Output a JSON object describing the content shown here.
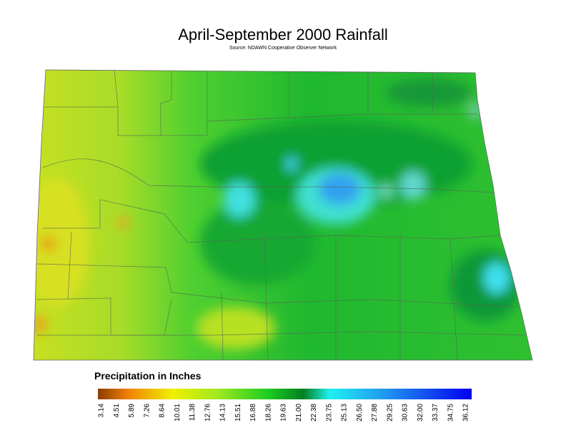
{
  "title": "April-September 2000 Rainfall",
  "subtitle": "Source: NDAWN Cooperative Observer Network",
  "legend": {
    "title": "Precipitation in Inches",
    "ticks": [
      "3.14",
      "4.51",
      "5.89",
      "7.26",
      "8.64",
      "10.01",
      "11.38",
      "12.76",
      "14.13",
      "15.51",
      "16.88",
      "18.26",
      "19.63",
      "21.00",
      "22.38",
      "23.75",
      "25.13",
      "26.50",
      "27.88",
      "29.25",
      "30.63",
      "32.00",
      "33.37",
      "34.75",
      "36.12"
    ]
  }
}
